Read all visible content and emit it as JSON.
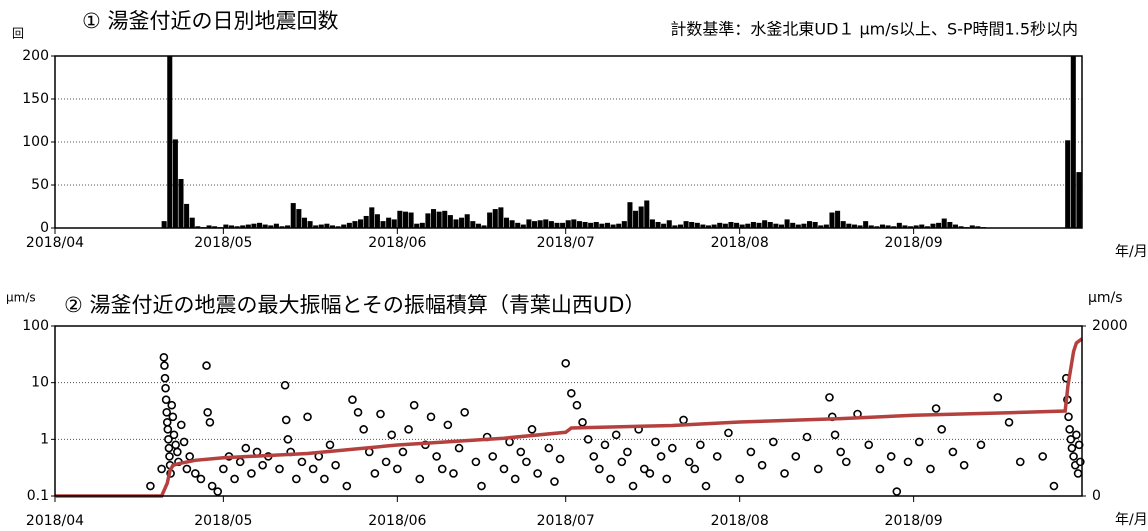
{
  "chart_data": [
    {
      "type": "bar",
      "title": "① 湯釜付近の日別地震回数",
      "subtitle": "計数基準：水釜北東UD１ μm/s以上、S-P時間1.5秒以内",
      "y_label": "回",
      "x_label": "年/月",
      "x": [
        0,
        1,
        2,
        3,
        4,
        5,
        6,
        7,
        8,
        9,
        10,
        11,
        12,
        13,
        14,
        15,
        16,
        17,
        18,
        19,
        20,
        21,
        22,
        23,
        24,
        25,
        26,
        27,
        28,
        29,
        30,
        31,
        32,
        33,
        34,
        35,
        36,
        37,
        38,
        39,
        40,
        41,
        42,
        43,
        44,
        45,
        46,
        47,
        48,
        49,
        50,
        51,
        52,
        53,
        54,
        55,
        56,
        57,
        58,
        59,
        60,
        61,
        62,
        63,
        64,
        65,
        66,
        67,
        68,
        69,
        70,
        71,
        72,
        73,
        74,
        75,
        76,
        77,
        78,
        79,
        80,
        81,
        82,
        83,
        84,
        85,
        86,
        87,
        88,
        89,
        90,
        91,
        92,
        93,
        94,
        95,
        96,
        97,
        98,
        99,
        100,
        101,
        102,
        103,
        104,
        105,
        106,
        107,
        108,
        109,
        110,
        111,
        112,
        113,
        114,
        115,
        116,
        117,
        118,
        119,
        120,
        121,
        122,
        123,
        124,
        125,
        126,
        127,
        128,
        129,
        130,
        131,
        132,
        133,
        134,
        135,
        136,
        137,
        138,
        139,
        140,
        141,
        142,
        143,
        144,
        145,
        146,
        147,
        148,
        149,
        150,
        151,
        152,
        153,
        154,
        155,
        156,
        157,
        158,
        159,
        160,
        161,
        162,
        163,
        164,
        165,
        166,
        167,
        168,
        169,
        170,
        171,
        172,
        173,
        174,
        175,
        176,
        177,
        178,
        179,
        180,
        181,
        182
      ],
      "values": [
        0,
        0,
        0,
        0,
        0,
        0,
        0,
        0,
        0,
        0,
        0,
        0,
        0,
        0,
        0,
        0,
        0,
        0,
        0,
        8,
        200,
        103,
        57,
        28,
        12,
        2,
        1,
        3,
        2,
        1,
        4,
        3,
        2,
        3,
        4,
        5,
        6,
        4,
        3,
        5,
        2,
        3,
        29,
        22,
        12,
        8,
        3,
        4,
        5,
        3,
        2,
        4,
        6,
        8,
        10,
        14,
        24,
        16,
        8,
        12,
        10,
        20,
        19,
        18,
        5,
        6,
        17,
        22,
        19,
        20,
        15,
        10,
        12,
        16,
        8,
        5,
        3,
        18,
        22,
        24,
        12,
        9,
        6,
        4,
        10,
        8,
        9,
        10,
        8,
        6,
        6,
        9,
        10,
        8,
        7,
        6,
        7,
        5,
        6,
        4,
        5,
        8,
        30,
        20,
        25,
        32,
        10,
        7,
        5,
        9,
        3,
        4,
        8,
        7,
        6,
        4,
        3,
        4,
        6,
        5,
        7,
        6,
        4,
        5,
        7,
        6,
        9,
        7,
        5,
        4,
        10,
        6,
        4,
        5,
        8,
        7,
        3,
        4,
        18,
        20,
        8,
        5,
        4,
        3,
        8,
        3,
        2,
        4,
        3,
        2,
        6,
        3,
        2,
        3,
        4,
        2,
        5,
        6,
        11,
        7,
        4,
        2,
        1,
        3,
        2,
        1,
        0,
        0,
        0,
        0,
        0,
        0,
        0,
        0,
        0,
        0,
        0,
        0,
        0,
        0,
        102,
        200,
        65
      ],
      "color": "#000000",
      "xlim": [
        0,
        183
      ],
      "xticks": [
        {
          "value": 0,
          "label": "2018/04"
        },
        {
          "value": 30,
          "label": "2018/05"
        },
        {
          "value": 61,
          "label": "2018/06"
        },
        {
          "value": 91,
          "label": "2018/07"
        },
        {
          "value": 122,
          "label": "2018/08"
        },
        {
          "value": 153,
          "label": "2018/09"
        }
      ],
      "ylim": [
        0,
        200
      ],
      "yticks": [
        0,
        50,
        100,
        150,
        200
      ],
      "grid": true
    },
    {
      "type": "scatter",
      "title": "② 湯釜付近の地震の最大振幅とその振幅積算（青葉山西UD）",
      "y_label": "μm/s",
      "y2_label": "μm/s",
      "x_label": "年/月",
      "log_scale": true,
      "xlim": [
        0,
        183
      ],
      "xticks": [
        {
          "value": 0,
          "label": "2018/04"
        },
        {
          "value": 30,
          "label": "2018/05"
        },
        {
          "value": 61,
          "label": "2018/06"
        },
        {
          "value": 91,
          "label": "2018/07"
        },
        {
          "value": 122,
          "label": "2018/08"
        },
        {
          "value": 153,
          "label": "2018/09"
        }
      ],
      "ylim": [
        0.1,
        100
      ],
      "yticks": [
        0.1,
        1,
        10,
        100
      ],
      "y2lim": [
        0,
        2000
      ],
      "y2ticks": [
        0,
        2000
      ],
      "grid": true,
      "series": [
        {
          "mode": "markers",
          "color": "#000000",
          "x": [
            17,
            19,
            19.4,
            19.5,
            19.6,
            19.7,
            19.8,
            19.9,
            20,
            20.1,
            20.2,
            20.3,
            20.4,
            20.5,
            20.6,
            20.8,
            21,
            21.2,
            21.5,
            21.8,
            22,
            22.5,
            23,
            23.5,
            24,
            25,
            26,
            27,
            27.2,
            27.6,
            28,
            29,
            30,
            31,
            32,
            33,
            34,
            35,
            36,
            37,
            38,
            40,
            41,
            41.2,
            41.5,
            42,
            43,
            44,
            45,
            46,
            47,
            48,
            49,
            50,
            52,
            53,
            54,
            55,
            56,
            57,
            58,
            59,
            60,
            61,
            62,
            63,
            64,
            65,
            66,
            67,
            68,
            69,
            70,
            71,
            72,
            73,
            75,
            76,
            77,
            78,
            80,
            81,
            82,
            83,
            84,
            85,
            86,
            88,
            89,
            90,
            91,
            92,
            93,
            94,
            95,
            96,
            97,
            98,
            99,
            100,
            101,
            102,
            103,
            104,
            105,
            106,
            107,
            108,
            109,
            110,
            112,
            113,
            114,
            115,
            116,
            118,
            120,
            122,
            124,
            126,
            128,
            130,
            132,
            134,
            136,
            138,
            138.5,
            139,
            140,
            141,
            143,
            145,
            147,
            149,
            150,
            152,
            154,
            156,
            157,
            158,
            160,
            162,
            165,
            168,
            170,
            172,
            176,
            178,
            180.2,
            180.4,
            180.6,
            180.8,
            181,
            181.2,
            181.5,
            181.8,
            182,
            182.3,
            182.5,
            182.7
          ],
          "values": [
            0.15,
            0.3,
            28,
            20,
            12,
            8,
            5,
            3,
            2,
            1.5,
            1,
            0.7,
            0.5,
            0.35,
            0.25,
            4,
            2.5,
            1.2,
            0.8,
            0.6,
            0.4,
            1.8,
            0.9,
            0.3,
            0.5,
            0.25,
            0.2,
            20,
            3,
            2,
            0.15,
            0.12,
            0.3,
            0.5,
            0.2,
            0.4,
            0.7,
            0.25,
            0.6,
            0.35,
            0.5,
            0.3,
            9,
            2.2,
            1,
            0.6,
            0.2,
            0.4,
            2.5,
            0.3,
            0.5,
            0.2,
            0.8,
            0.35,
            0.15,
            5,
            3,
            1.5,
            0.6,
            0.25,
            2.8,
            0.4,
            1.2,
            0.3,
            0.6,
            1.5,
            4,
            0.2,
            0.8,
            2.5,
            0.5,
            0.3,
            1.8,
            0.25,
            0.7,
            3,
            0.4,
            0.15,
            1.1,
            0.5,
            0.3,
            0.9,
            0.2,
            0.6,
            0.4,
            1.5,
            0.25,
            0.7,
            0.18,
            0.45,
            22,
            6.5,
            4,
            2,
            1,
            0.5,
            0.3,
            0.8,
            0.2,
            1.2,
            0.4,
            0.6,
            0.15,
            1.5,
            0.3,
            0.25,
            0.9,
            0.5,
            0.2,
            0.7,
            2.2,
            0.4,
            0.3,
            0.8,
            0.15,
            0.5,
            1.3,
            0.2,
            0.6,
            0.35,
            0.9,
            0.25,
            0.5,
            1.1,
            0.3,
            5.5,
            2.5,
            1.2,
            0.6,
            0.4,
            2.8,
            0.8,
            0.3,
            0.5,
            0.12,
            0.4,
            0.9,
            0.3,
            3.5,
            1.5,
            0.6,
            0.35,
            0.8,
            5.5,
            2,
            0.4,
            0.5,
            0.15,
            12,
            5,
            2.5,
            1.5,
            1,
            0.7,
            0.5,
            0.35,
            1.2,
            0.25,
            0.8,
            0.4
          ]
        },
        {
          "mode": "lines",
          "axis": "y2",
          "color": "#b5413f",
          "x": [
            0,
            19,
            20,
            20.5,
            21,
            22,
            25,
            30,
            45,
            61,
            80,
            91,
            92,
            110,
            122,
            140,
            153,
            170,
            180,
            180.5,
            181,
            181.5,
            182,
            183
          ],
          "values": [
            0,
            0,
            150,
            300,
            360,
            380,
            420,
            450,
            500,
            600,
            680,
            750,
            800,
            830,
            870,
            910,
            950,
            980,
            1000,
            1300,
            1500,
            1700,
            1800,
            1850
          ]
        }
      ]
    }
  ]
}
